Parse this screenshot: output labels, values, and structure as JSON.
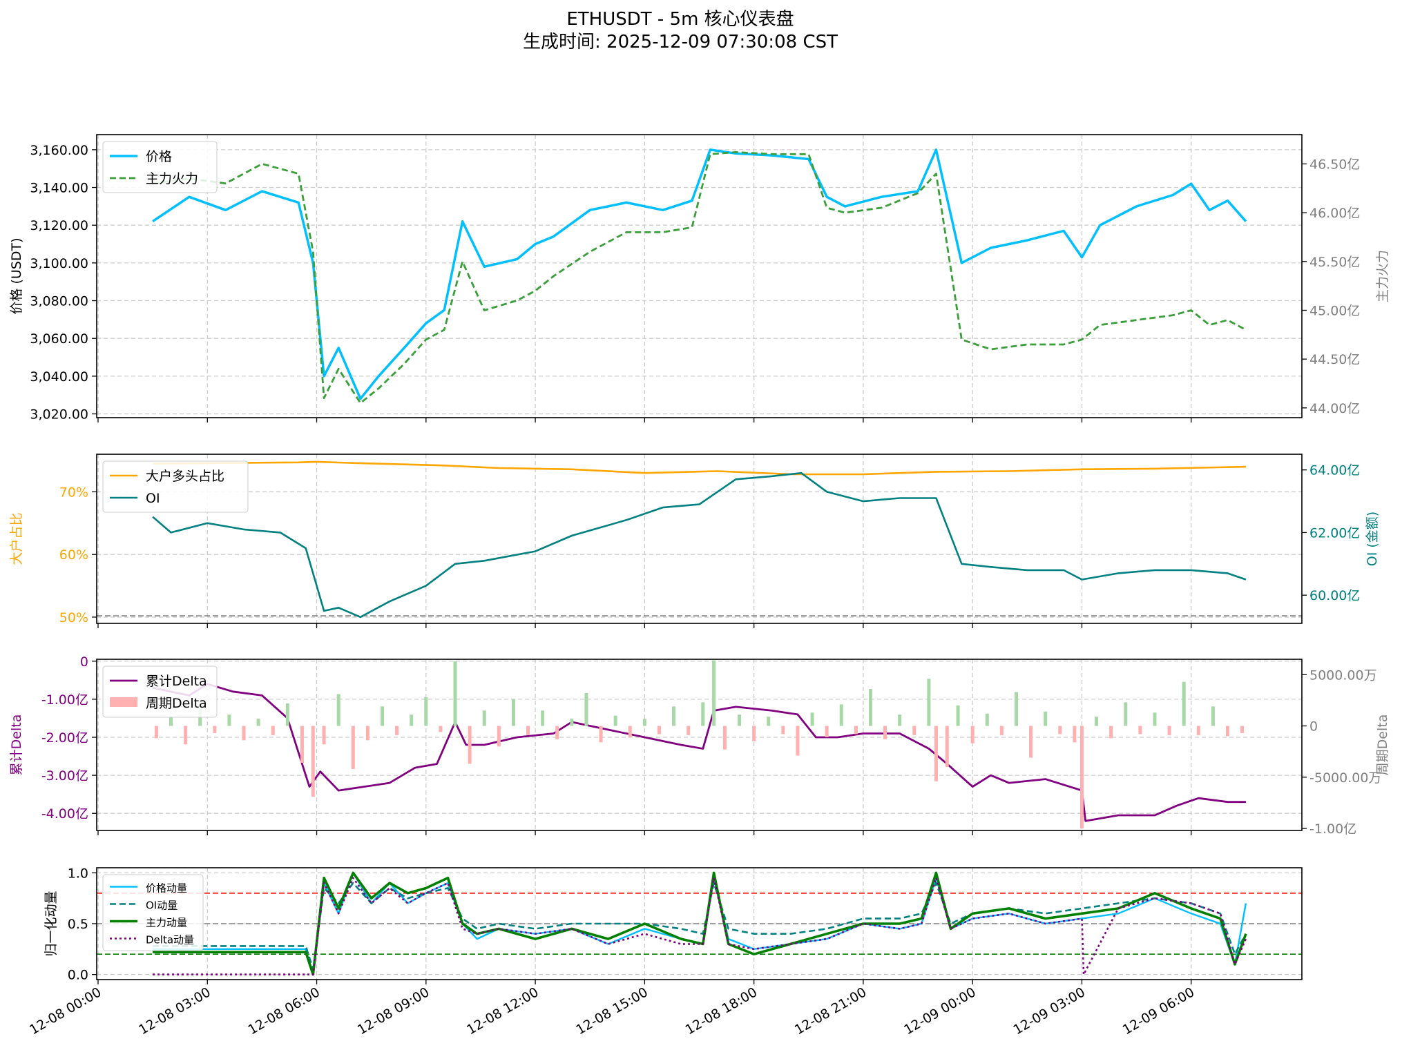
{
  "title": "ETHUSDT - 5m 核心仪表盘",
  "subtitle": "生成时间: 2025-12-09 07:30:08 CST",
  "colors": {
    "price": "#00bfff",
    "mainforce": "#3a9e3a",
    "bigratio": "#ffa500",
    "oi": "#008080",
    "cumdelta": "#800080",
    "delta_pos": "#a8d8a8",
    "delta_neg": "#ffb0b0",
    "grid": "#cccccc"
  },
  "x_axis": {
    "ticks": [
      "12-08 00:00",
      "12-08 03:00",
      "12-08 06:00",
      "12-08 09:00",
      "12-08 12:00",
      "12-08 15:00",
      "12-08 18:00",
      "12-08 21:00",
      "12-09 00:00",
      "12-09 03:00",
      "12-09 06:00"
    ],
    "start_hour": 1.5,
    "end_hour": 31.5
  },
  "chart_data": [
    {
      "type": "line",
      "ylabel": "价格 (USDT)",
      "y2label": "主力火力",
      "yticks": [
        "3,020.00",
        "3,040.00",
        "3,060.00",
        "3,080.00",
        "3,100.00",
        "3,120.00",
        "3,140.00",
        "3,160.00"
      ],
      "y2ticks": [
        "44.00亿",
        "44.50亿",
        "45.00亿",
        "45.50亿",
        "46.00亿",
        "46.50亿"
      ],
      "ylim": [
        3018,
        3168
      ],
      "y2lim": [
        43.9,
        46.8
      ],
      "legend": [
        "价格",
        "主力火力"
      ],
      "series": [
        {
          "name": "价格",
          "axis": "left",
          "x": [
            1.5,
            2.5,
            3.5,
            4.5,
            5.5,
            5.9,
            6.2,
            6.6,
            7.2,
            7.7,
            8.4,
            9.0,
            9.5,
            10.0,
            10.6,
            11.5,
            12.0,
            12.5,
            13.5,
            14.5,
            15.5,
            16.3,
            16.8,
            17.5,
            18.5,
            19.5,
            20.0,
            20.5,
            21.5,
            22.5,
            23.0,
            23.7,
            24.5,
            25.5,
            26.5,
            27.0,
            27.5,
            28.5,
            29.5,
            30.0,
            30.5,
            31.0,
            31.5
          ],
          "y": [
            3122,
            3135,
            3128,
            3138,
            3132,
            3100,
            3040,
            3055,
            3028,
            3040,
            3055,
            3068,
            3075,
            3122,
            3098,
            3102,
            3110,
            3114,
            3128,
            3132,
            3128,
            3133,
            3160,
            3158,
            3157,
            3155,
            3135,
            3130,
            3135,
            3138,
            3160,
            3100,
            3108,
            3112,
            3117,
            3103,
            3120,
            3130,
            3136,
            3142,
            3128,
            3133,
            3122
          ]
        },
        {
          "name": "主力火力",
          "axis": "right",
          "x": [
            1.5,
            2.5,
            3.5,
            4.5,
            5.5,
            5.9,
            6.2,
            6.6,
            7.2,
            7.7,
            8.4,
            9.0,
            9.5,
            10.0,
            10.6,
            11.5,
            12.0,
            12.5,
            13.5,
            14.5,
            15.5,
            16.3,
            16.8,
            17.5,
            18.5,
            19.5,
            20.0,
            20.5,
            21.5,
            22.5,
            23.0,
            23.7,
            24.5,
            25.5,
            26.5,
            27.0,
            27.5,
            28.5,
            29.5,
            30.0,
            30.5,
            31.0,
            31.5
          ],
          "y": [
            46.3,
            46.35,
            46.3,
            46.5,
            46.4,
            45.6,
            44.1,
            44.4,
            44.05,
            44.2,
            44.45,
            44.7,
            44.8,
            45.5,
            45.0,
            45.1,
            45.2,
            45.35,
            45.6,
            45.8,
            45.8,
            45.85,
            46.6,
            46.62,
            46.6,
            46.6,
            46.05,
            46.0,
            46.05,
            46.2,
            46.4,
            44.7,
            44.6,
            44.65,
            44.65,
            44.7,
            44.85,
            44.9,
            44.95,
            45.0,
            44.85,
            44.9,
            44.8
          ]
        }
      ]
    },
    {
      "type": "line",
      "ylabel": "大户占比",
      "y2label": "OI (金额)",
      "yticks": [
        "50%",
        "60%",
        "70%"
      ],
      "y2ticks": [
        "60.00亿",
        "62.00亿",
        "64.00亿"
      ],
      "ylim": [
        49,
        76
      ],
      "y2lim": [
        59.1,
        64.5
      ],
      "hline": 50.2,
      "legend": [
        "大户多头占比",
        "OI"
      ],
      "series": [
        {
          "name": "大户多头占比",
          "axis": "left",
          "x": [
            1.5,
            3.5,
            5.5,
            6.0,
            7.0,
            9.5,
            11.0,
            13.0,
            15.0,
            17.0,
            19.0,
            21.0,
            23.0,
            25.0,
            27.0,
            29.0,
            31.5
          ],
          "y": [
            74.5,
            74.6,
            74.7,
            74.8,
            74.6,
            74.2,
            73.8,
            73.6,
            73.0,
            73.3,
            72.8,
            72.8,
            73.2,
            73.3,
            73.6,
            73.7,
            74.0
          ]
        },
        {
          "name": "OI",
          "axis": "right",
          "x": [
            1.5,
            2.0,
            3.0,
            4.0,
            5.0,
            5.7,
            6.2,
            6.6,
            7.2,
            8.0,
            9.0,
            9.8,
            10.6,
            12.0,
            13.0,
            14.5,
            15.5,
            16.5,
            17.5,
            18.5,
            19.3,
            20.0,
            21.0,
            22.0,
            23.0,
            23.7,
            24.5,
            25.5,
            26.5,
            27.0,
            28.0,
            29.0,
            30.0,
            31.0,
            31.5
          ],
          "y": [
            62.5,
            62.0,
            62.3,
            62.1,
            62.0,
            61.5,
            59.5,
            59.6,
            59.3,
            59.8,
            60.3,
            61.0,
            61.1,
            61.4,
            61.9,
            62.4,
            62.8,
            62.9,
            63.7,
            63.8,
            63.9,
            63.3,
            63.0,
            63.1,
            63.1,
            61.0,
            60.9,
            60.8,
            60.8,
            60.5,
            60.7,
            60.8,
            60.8,
            60.7,
            60.5
          ]
        }
      ]
    },
    {
      "type": "bar",
      "ylabel": "累计Delta",
      "y2label": "周期Delta",
      "yticks": [
        "-4.00亿",
        "-3.00亿",
        "-2.00亿",
        "-1.00亿",
        "0"
      ],
      "y2ticks": [
        "-1.00亿",
        "-5000.00万",
        "0",
        "5000.00万"
      ],
      "ylim": [
        -4.45,
        0.05
      ],
      "y2lim": [
        -10200,
        6500
      ],
      "legend": [
        "累计Delta",
        "周期Delta"
      ],
      "series": [
        {
          "name": "累计Delta",
          "axis": "left",
          "x": [
            1.5,
            2.5,
            3.0,
            3.7,
            4.5,
            5.2,
            5.8,
            6.1,
            6.6,
            7.3,
            8.0,
            8.7,
            9.3,
            9.8,
            10.1,
            10.6,
            11.5,
            12.5,
            13.0,
            14.0,
            15.0,
            16.0,
            16.6,
            16.9,
            17.5,
            18.5,
            19.2,
            19.7,
            20.3,
            21.0,
            22.0,
            22.8,
            23.3,
            24.0,
            24.5,
            25.0,
            26.0,
            27.0,
            27.1,
            28.0,
            29.0,
            29.6,
            30.2,
            31.0,
            31.5
          ],
          "y": [
            -0.7,
            -0.9,
            -0.6,
            -0.8,
            -0.9,
            -1.5,
            -3.3,
            -2.9,
            -3.4,
            -3.3,
            -3.2,
            -2.8,
            -2.7,
            -1.6,
            -2.2,
            -2.2,
            -2.0,
            -1.9,
            -1.6,
            -1.8,
            -2.0,
            -2.2,
            -2.3,
            -1.3,
            -1.2,
            -1.3,
            -1.4,
            -2.0,
            -2.0,
            -1.9,
            -1.9,
            -2.3,
            -2.7,
            -3.3,
            -3.0,
            -3.2,
            -3.1,
            -3.4,
            -4.2,
            -4.05,
            -4.05,
            -3.8,
            -3.6,
            -3.7,
            -3.7
          ]
        },
        {
          "name": "周期Delta",
          "axis": "right",
          "x": [
            1.6,
            2.0,
            2.4,
            2.8,
            3.2,
            3.6,
            4.0,
            4.4,
            4.8,
            5.2,
            5.6,
            5.9,
            6.2,
            6.6,
            7.0,
            7.4,
            7.8,
            8.2,
            8.6,
            9.0,
            9.4,
            9.8,
            10.2,
            10.6,
            11.0,
            11.4,
            11.8,
            12.2,
            12.6,
            13.0,
            13.4,
            13.8,
            14.2,
            14.6,
            15.0,
            15.4,
            15.8,
            16.2,
            16.6,
            16.9,
            17.2,
            17.6,
            18.0,
            18.4,
            18.8,
            19.2,
            19.6,
            20.0,
            20.4,
            20.8,
            21.2,
            21.6,
            22.0,
            22.4,
            22.8,
            23.0,
            23.3,
            23.6,
            24.0,
            24.4,
            24.8,
            25.2,
            25.6,
            26.0,
            26.4,
            26.8,
            27.0,
            27.4,
            27.8,
            28.2,
            28.6,
            29.0,
            29.4,
            29.8,
            30.2,
            30.6,
            31.0,
            31.4
          ],
          "y": [
            -1200,
            900,
            -1800,
            2400,
            -700,
            1100,
            -1400,
            700,
            -900,
            2200,
            -3600,
            -6900,
            -1800,
            3100,
            -4200,
            -1400,
            1900,
            -900,
            1100,
            2800,
            -600,
            6300,
            -3700,
            1500,
            -2000,
            2600,
            -900,
            1500,
            -1300,
            700,
            3200,
            -1600,
            1000,
            -1100,
            700,
            -800,
            1900,
            -900,
            2300,
            6400,
            -2300,
            1100,
            -1500,
            900,
            -800,
            -2900,
            1300,
            -1100,
            2100,
            -800,
            3600,
            -1300,
            1100,
            -900,
            4600,
            -5400,
            -4000,
            2000,
            -1700,
            1200,
            -900,
            3300,
            -3100,
            1400,
            -800,
            -1600,
            -10000,
            900,
            -1200,
            2300,
            -800,
            1300,
            -900,
            4300,
            -900,
            1900,
            -1000,
            -700
          ]
        }
      ]
    },
    {
      "type": "line",
      "ylabel": "归一化动量",
      "yticks": [
        "0.0",
        "0.5",
        "1.0"
      ],
      "ylim": [
        -0.05,
        1.05
      ],
      "hlines": [
        0.8,
        0.5,
        0.2
      ],
      "legend": [
        "价格动量",
        "OI动量",
        "主力动量",
        "Delta动量"
      ],
      "series": [
        {
          "name": "价格动量",
          "x": [
            1.5,
            5.7,
            5.9,
            6.2,
            6.6,
            7.0,
            7.5,
            8.0,
            8.5,
            9.0,
            9.6,
            10.0,
            10.4,
            11.0,
            12.0,
            13.0,
            14.0,
            15.0,
            16.0,
            16.6,
            16.9,
            17.3,
            18.0,
            19.0,
            20.0,
            21.0,
            22.0,
            22.6,
            23.0,
            23.4,
            24.0,
            25.0,
            26.0,
            27.0,
            28.0,
            29.0,
            30.0,
            30.8,
            31.2,
            31.5
          ],
          "y": [
            0.25,
            0.25,
            0.0,
            0.9,
            0.6,
            1.0,
            0.7,
            0.9,
            0.7,
            0.8,
            0.9,
            0.5,
            0.35,
            0.45,
            0.4,
            0.45,
            0.3,
            0.45,
            0.35,
            0.3,
            0.95,
            0.35,
            0.25,
            0.3,
            0.35,
            0.5,
            0.45,
            0.5,
            0.95,
            0.45,
            0.55,
            0.6,
            0.5,
            0.55,
            0.6,
            0.75,
            0.6,
            0.5,
            0.1,
            0.7
          ]
        },
        {
          "name": "OI动量",
          "x": [
            1.5,
            5.7,
            5.9,
            6.2,
            6.6,
            7.0,
            7.5,
            8.0,
            8.5,
            9.0,
            9.6,
            10.0,
            10.4,
            11.0,
            12.0,
            13.0,
            14.0,
            15.0,
            16.0,
            16.6,
            16.9,
            17.3,
            18.0,
            19.0,
            20.0,
            21.0,
            22.0,
            22.6,
            23.0,
            23.4,
            24.0,
            25.0,
            26.0,
            27.0,
            28.0,
            29.0,
            30.0,
            30.8,
            31.2,
            31.5
          ],
          "y": [
            0.28,
            0.28,
            0.05,
            0.85,
            0.7,
            0.9,
            0.7,
            0.85,
            0.75,
            0.8,
            0.85,
            0.55,
            0.45,
            0.5,
            0.45,
            0.5,
            0.5,
            0.5,
            0.45,
            0.4,
            0.9,
            0.45,
            0.4,
            0.4,
            0.45,
            0.55,
            0.55,
            0.6,
            0.9,
            0.5,
            0.6,
            0.65,
            0.6,
            0.65,
            0.7,
            0.75,
            0.7,
            0.6,
            0.2,
            0.4
          ]
        },
        {
          "name": "主力动量",
          "x": [
            1.5,
            5.7,
            5.9,
            6.2,
            6.6,
            7.0,
            7.5,
            8.0,
            8.5,
            9.0,
            9.6,
            10.0,
            10.4,
            11.0,
            12.0,
            13.0,
            14.0,
            15.0,
            16.0,
            16.6,
            16.9,
            17.3,
            18.0,
            19.0,
            20.0,
            21.0,
            22.0,
            22.6,
            23.0,
            23.4,
            24.0,
            25.0,
            26.0,
            27.0,
            28.0,
            29.0,
            30.0,
            30.8,
            31.2,
            31.5
          ],
          "y": [
            0.22,
            0.22,
            0.0,
            0.95,
            0.65,
            1.0,
            0.75,
            0.9,
            0.8,
            0.85,
            0.95,
            0.5,
            0.4,
            0.45,
            0.35,
            0.45,
            0.35,
            0.5,
            0.35,
            0.3,
            1.0,
            0.3,
            0.2,
            0.3,
            0.4,
            0.5,
            0.5,
            0.55,
            1.0,
            0.45,
            0.6,
            0.65,
            0.55,
            0.6,
            0.65,
            0.8,
            0.65,
            0.55,
            0.1,
            0.4
          ]
        },
        {
          "name": "Delta动量",
          "x": [
            1.5,
            5.7,
            5.9,
            6.2,
            6.6,
            7.0,
            7.5,
            8.0,
            8.5,
            9.0,
            9.6,
            10.0,
            10.4,
            11.0,
            12.0,
            13.0,
            14.0,
            15.0,
            16.0,
            16.6,
            16.9,
            17.3,
            18.0,
            19.0,
            20.0,
            21.0,
            22.0,
            22.6,
            23.0,
            23.4,
            24.0,
            25.0,
            26.0,
            27.0,
            27.05,
            28.0,
            29.0,
            30.0,
            30.8,
            31.2,
            31.5
          ],
          "y": [
            0.0,
            0.0,
            0.0,
            0.9,
            0.6,
            0.95,
            0.7,
            0.85,
            0.7,
            0.8,
            0.9,
            0.45,
            0.4,
            0.45,
            0.4,
            0.45,
            0.3,
            0.4,
            0.3,
            0.3,
            0.95,
            0.3,
            0.25,
            0.3,
            0.35,
            0.5,
            0.45,
            0.5,
            0.95,
            0.45,
            0.55,
            0.6,
            0.5,
            0.55,
            0.0,
            0.65,
            0.75,
            0.7,
            0.6,
            0.1,
            0.35
          ]
        }
      ]
    }
  ]
}
